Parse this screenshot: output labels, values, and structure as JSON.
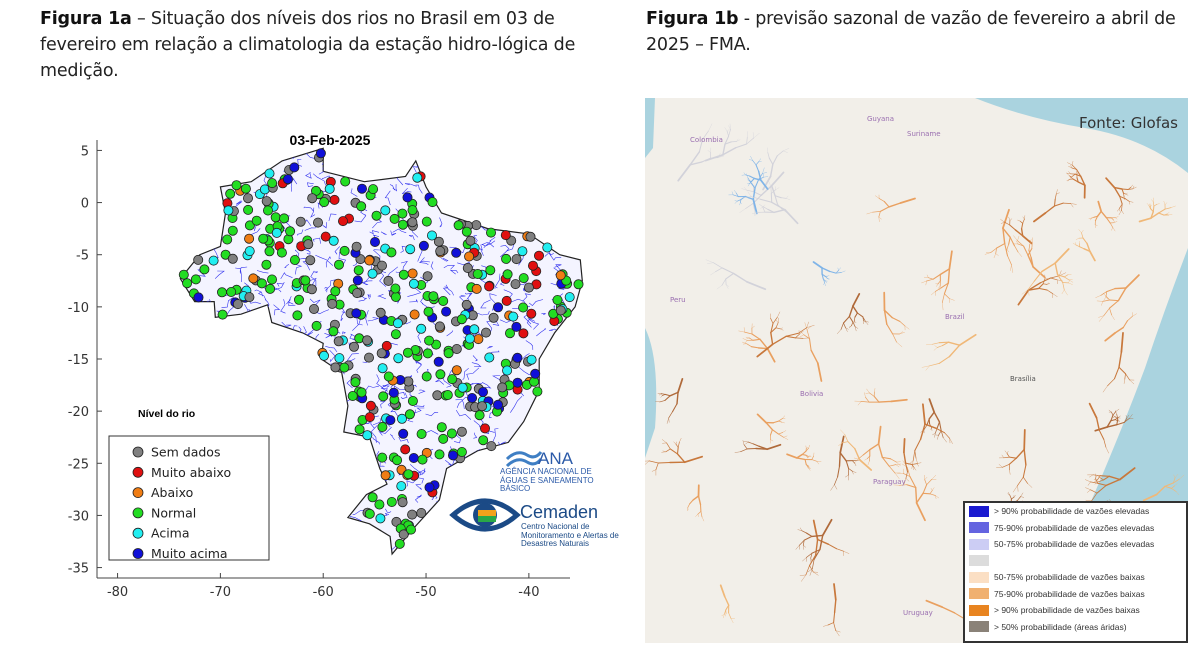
{
  "figure_a": {
    "caption_label": "Figura 1a",
    "caption_text": " – Situação dos níveis dos rios no Brasil em 03 de fevereiro em relação a climatologia da estação hidro-lógica de medição.",
    "map": {
      "title": "03-Feb-2025",
      "x_ticks": [
        "-80",
        "-70",
        "-60",
        "-50",
        "-40"
      ],
      "y_ticks": [
        "5",
        "0",
        "-5",
        "-10",
        "-15",
        "-20",
        "-25",
        "-30",
        "-35"
      ],
      "xlim": [
        -82,
        -36
      ],
      "ylim": [
        -36,
        6
      ],
      "legend_title": "Nível do rio",
      "legend": [
        {
          "label": "Sem dados",
          "color": "#808080"
        },
        {
          "label": "Muito abaixo",
          "color": "#e01010"
        },
        {
          "label": "Abaixo",
          "color": "#f07d14"
        },
        {
          "label": "Normal",
          "color": "#22dd22"
        },
        {
          "label": "Acima",
          "color": "#22eef0"
        },
        {
          "label": "Muito acima",
          "color": "#1010d8"
        }
      ],
      "river_color": "#3333ee"
    },
    "logos": {
      "ana": "ANA",
      "ana_sub": "AGÊNCIA NACIONAL DE ÁGUAS E SANEAMENTO BÁSICO",
      "cemaden": "Cemaden",
      "cemaden_sub": "Centro Nacional de Monitoramento e Alertas de Desastres Naturais"
    }
  },
  "figure_b": {
    "caption_label": "Figura 1b",
    "caption_text": " - previsão sazonal de vazão de fevereiro a abril de 2025 – FMA.",
    "source": "Fonte: Glofas",
    "place_labels": [
      "Colombia",
      "Guyana",
      "Suriname",
      "Peru",
      "Brazil",
      "Bolivia",
      "Brasília",
      "Paraguay",
      "Uruguay"
    ],
    "legend": [
      {
        "label": "> 90% probabilidade de vazões elevadas",
        "color": "#1a1ad0"
      },
      {
        "label": "75-90% probabilidade de vazões elevadas",
        "color": "#6464e0"
      },
      {
        "label": "50-75% probabilidade de vazões elevadas",
        "color": "#cccdf4"
      },
      {
        "label": "",
        "color": "#dcdcdc"
      },
      {
        "label": "50-75% probabilidade de vazões baixas",
        "color": "#fbdfc4"
      },
      {
        "label": "75-90% probabilidade de vazões baixas",
        "color": "#f0b070"
      },
      {
        "label": "> 90% probabilidade de vazões baixas",
        "color": "#e88420"
      },
      {
        "label": "> 50% probabilidade (áreas áridas)",
        "color": "#8a8278"
      }
    ]
  }
}
